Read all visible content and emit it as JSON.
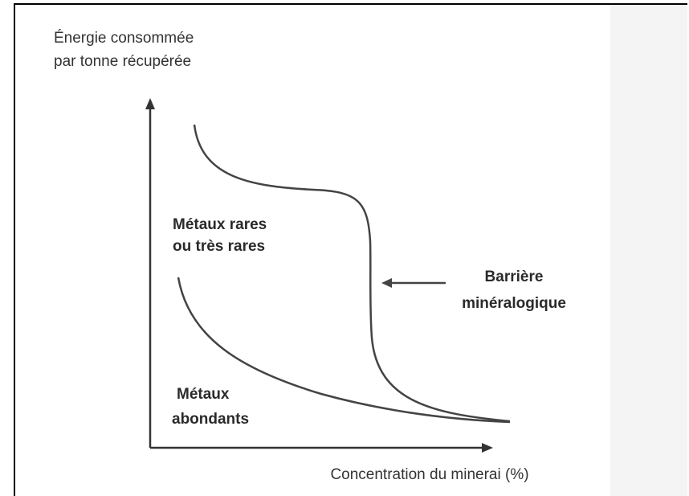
{
  "y_axis_label": [
    "Énergie consommée",
    "par tonne récupérée"
  ],
  "x_axis_label": "Concentration du minerai (%)",
  "curves": [
    {
      "label": [
        "Métaux rares",
        "ou très rares"
      ]
    },
    {
      "label": [
        "Métaux",
        "abondants"
      ]
    }
  ],
  "annotation": [
    "Barrière",
    "minéralogique"
  ]
}
